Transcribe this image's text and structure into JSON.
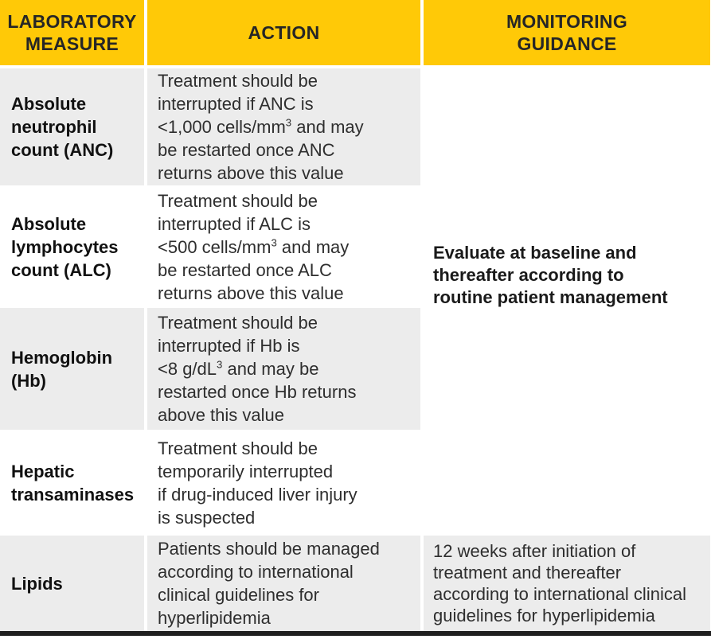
{
  "colors": {
    "accent_yellow": "#FFC907",
    "row_gray": "#ECECEC",
    "header_text": "#262626",
    "body_text": "#2E2E2E",
    "bottom_bar": "#1F1F1F"
  },
  "header": {
    "laboratory_measure": "LABORATORY\nMEASURE",
    "action": "ACTION",
    "monitoring_guidance": "MONITORING\nGUIDANCE"
  },
  "rows": [
    {
      "measure": "Absolute\nneutrophil\ncount (ANC)",
      "action_pre": "Treatment should be\ninterrupted if ANC is\n<1,000 cells/mm",
      "action_sup": "3",
      "action_post": " and may\nbe restarted once ANC\nreturns above this value"
    },
    {
      "measure": "Absolute\nlymphocytes\ncount (ALC)",
      "action_pre": "Treatment should be\ninterrupted if ALC is\n<500 cells/mm",
      "action_sup": "3",
      "action_post": " and may\nbe restarted once ALC\nreturns above this value"
    },
    {
      "measure": "Hemoglobin\n(Hb)",
      "action_pre": "Treatment should be\ninterrupted if Hb is\n<8 g/dL",
      "action_sup": "3",
      "action_post": " and may be\nrestarted once Hb returns\nabove this value"
    },
    {
      "measure": "Hepatic\ntransaminases",
      "action_pre": "Treatment should be\ntemporarily interrupted\nif drug-induced liver injury\nis suspected",
      "action_sup": "",
      "action_post": ""
    },
    {
      "measure": "Lipids",
      "action_pre": "Patients should be managed\naccording to international\nclinical guidelines for\nhyperlipidemia",
      "action_sup": "",
      "action_post": ""
    }
  ],
  "monitoring": {
    "merged_rows_1_to_4": "Evaluate at baseline and\nthereafter according to\nroutine patient management",
    "lipids": "12 weeks after initiation of\ntreatment and thereafter\naccording to international clinical\nguidelines for hyperlipidemia"
  }
}
